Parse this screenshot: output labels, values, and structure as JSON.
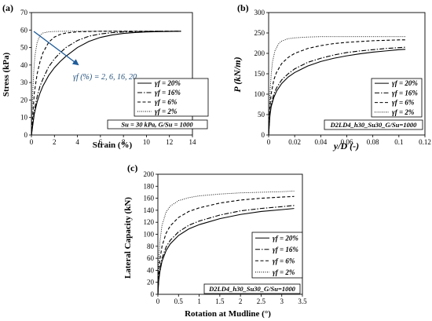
{
  "colors": {
    "arrow": "#1f5c99",
    "annotation": "#1f4e79",
    "line": "#000000",
    "frame": "#000000"
  },
  "chart_data": [
    {
      "panel": "(a)",
      "type": "line",
      "xlabel": "Strain (%)",
      "ylabel": "Stress (kPa)",
      "xlim": [
        0,
        14
      ],
      "ylim": [
        0,
        70
      ],
      "xticks": [
        0,
        2,
        4,
        6,
        8,
        10,
        12,
        14
      ],
      "yticks": [
        0,
        10,
        20,
        30,
        40,
        50,
        60,
        70
      ],
      "grid": false,
      "legend_position": "bottom-right",
      "legend_title": "",
      "annotation": "γf (%) = 2, 6, 16, 20",
      "note": "Su = 30 kPa, G/Su = 1000",
      "series": [
        {
          "name": "γf = 20%",
          "dash": "solid",
          "x": [
            0,
            0.25,
            0.5,
            0.75,
            1,
            1.5,
            2,
            2.5,
            3,
            4,
            5,
            6,
            7,
            8,
            9,
            10,
            11,
            12,
            13
          ],
          "y": [
            0,
            12,
            19,
            24,
            28,
            34,
            38.5,
            42,
            45,
            50,
            53.5,
            55.8,
            57.2,
            58.1,
            58.6,
            58.9,
            59.1,
            59.2,
            59.3
          ]
        },
        {
          "name": "γf = 16%",
          "dash": "dashdot",
          "x": [
            0,
            0.25,
            0.5,
            0.75,
            1,
            1.5,
            2,
            2.5,
            3,
            4,
            5,
            6,
            7,
            8,
            9,
            10,
            11,
            12,
            13
          ],
          "y": [
            0,
            14,
            22,
            28,
            32,
            39,
            43.5,
            47,
            50,
            54,
            56.5,
            57.8,
            58.5,
            58.9,
            59.1,
            59.2,
            59.3,
            59.3,
            59.3
          ]
        },
        {
          "name": "γf = 6%",
          "dash": "dashed",
          "x": [
            0,
            0.25,
            0.5,
            0.75,
            1,
            1.5,
            2,
            2.5,
            3,
            4,
            5,
            6,
            7,
            8,
            9,
            10,
            11,
            12,
            13
          ],
          "y": [
            0,
            24,
            35,
            42,
            47,
            53,
            56,
            57.5,
            58.3,
            59,
            59.2,
            59.3,
            59.3,
            59.3,
            59.3,
            59.3,
            59.3,
            59.3,
            59.3
          ]
        },
        {
          "name": "γf = 2%",
          "dash": "dotted",
          "x": [
            0,
            0.1,
            0.2,
            0.3,
            0.5,
            0.75,
            1,
            1.5,
            2,
            3,
            4,
            6,
            8,
            10,
            12,
            13
          ],
          "y": [
            0,
            22,
            36,
            45,
            53,
            57,
            58.3,
            59,
            59.2,
            59.3,
            59.3,
            59.3,
            59.3,
            59.3,
            59.3,
            59.3
          ]
        }
      ]
    },
    {
      "panel": "(b)",
      "type": "line",
      "xlabel": "y/D (-)",
      "ylabel": "P (kN/m)",
      "xlim": [
        0,
        0.12
      ],
      "ylim": [
        0,
        300
      ],
      "xticks": [
        0,
        0.02,
        0.04,
        0.06,
        0.08,
        0.1,
        0.12
      ],
      "xtick_labels": [
        "0",
        "0.02",
        "0.04",
        "0.06",
        "0.08",
        "0.1",
        "0.12"
      ],
      "yticks": [
        0,
        50,
        100,
        150,
        200,
        250,
        300
      ],
      "grid": false,
      "legend_position": "bottom-right",
      "legend_title": "",
      "note": "D2LD4_h30_Su30_G/Su=1000",
      "series": [
        {
          "name": "γf = 20%",
          "dash": "solid",
          "x": [
            0,
            0.001,
            0.002,
            0.004,
            0.006,
            0.01,
            0.015,
            0.02,
            0.03,
            0.04,
            0.05,
            0.06,
            0.07,
            0.08,
            0.09,
            0.1,
            0.105
          ],
          "y": [
            0,
            48,
            70,
            92,
            107,
            126,
            142,
            153,
            169,
            180,
            188,
            194,
            199,
            203,
            206,
            209,
            210
          ]
        },
        {
          "name": "γf = 16%",
          "dash": "dashdot",
          "x": [
            0,
            0.001,
            0.002,
            0.004,
            0.006,
            0.01,
            0.015,
            0.02,
            0.03,
            0.04,
            0.05,
            0.06,
            0.07,
            0.08,
            0.09,
            0.1,
            0.105
          ],
          "y": [
            0,
            52,
            76,
            100,
            115,
            135,
            150,
            162,
            178,
            188,
            196,
            202,
            206,
            209,
            212,
            214,
            215
          ]
        },
        {
          "name": "γf = 6%",
          "dash": "dashed",
          "x": [
            0,
            0.001,
            0.002,
            0.004,
            0.006,
            0.01,
            0.015,
            0.02,
            0.03,
            0.04,
            0.05,
            0.06,
            0.07,
            0.08,
            0.09,
            0.1,
            0.105
          ],
          "y": [
            0,
            70,
            102,
            135,
            153,
            175,
            190,
            200,
            212,
            219,
            224,
            227,
            229,
            231,
            232,
            233,
            233
          ]
        },
        {
          "name": "γf = 2%",
          "dash": "dotted",
          "x": [
            0,
            0.001,
            0.002,
            0.003,
            0.005,
            0.008,
            0.01,
            0.015,
            0.02,
            0.03,
            0.04,
            0.06,
            0.08,
            0.1,
            0.105
          ],
          "y": [
            0,
            100,
            150,
            180,
            208,
            225,
            230,
            236,
            238,
            240,
            241,
            241,
            241,
            241,
            241
          ]
        }
      ]
    },
    {
      "panel": "(c)",
      "type": "line",
      "xlabel": "Rotation at Mudline (°)",
      "ylabel": "Lateral Capacity (kN)",
      "xlim": [
        0,
        3.5
      ],
      "ylim": [
        0,
        200
      ],
      "xticks": [
        0,
        0.5,
        1,
        1.5,
        2,
        2.5,
        3,
        3.5
      ],
      "yticks": [
        0,
        20,
        40,
        60,
        80,
        100,
        120,
        140,
        160,
        180,
        200
      ],
      "grid": false,
      "legend_position": "bottom-right",
      "legend_title": "",
      "note": "D2LD4_h30_Su30_G/Su=1000",
      "series": [
        {
          "name": "γf = 20%",
          "dash": "solid",
          "x": [
            0,
            0.02,
            0.05,
            0.1,
            0.2,
            0.3,
            0.5,
            0.75,
            1,
            1.5,
            2,
            2.5,
            3,
            3.3
          ],
          "y": [
            0,
            22,
            38,
            55,
            73,
            84,
            98,
            109,
            116,
            126,
            133,
            138,
            141,
            143
          ]
        },
        {
          "name": "γf = 16%",
          "dash": "dashdot",
          "x": [
            0,
            0.02,
            0.05,
            0.1,
            0.2,
            0.3,
            0.5,
            0.75,
            1,
            1.5,
            2,
            2.5,
            3,
            3.3
          ],
          "y": [
            0,
            25,
            42,
            60,
            79,
            90,
            104,
            115,
            122,
            132,
            139,
            143,
            146,
            148
          ]
        },
        {
          "name": "γf = 6%",
          "dash": "dashed",
          "x": [
            0,
            0.02,
            0.05,
            0.1,
            0.2,
            0.3,
            0.5,
            0.75,
            1,
            1.5,
            2,
            2.5,
            3,
            3.3
          ],
          "y": [
            0,
            35,
            58,
            80,
            102,
            114,
            128,
            138,
            144,
            152,
            157,
            160,
            162,
            163
          ]
        },
        {
          "name": "γf = 2%",
          "dash": "dotted",
          "x": [
            0,
            0.02,
            0.05,
            0.1,
            0.2,
            0.3,
            0.5,
            0.75,
            1,
            1.5,
            2,
            2.5,
            3,
            3.3
          ],
          "y": [
            0,
            55,
            88,
            115,
            137,
            147,
            156,
            161,
            164,
            167,
            169,
            170,
            171,
            172
          ]
        }
      ]
    }
  ]
}
